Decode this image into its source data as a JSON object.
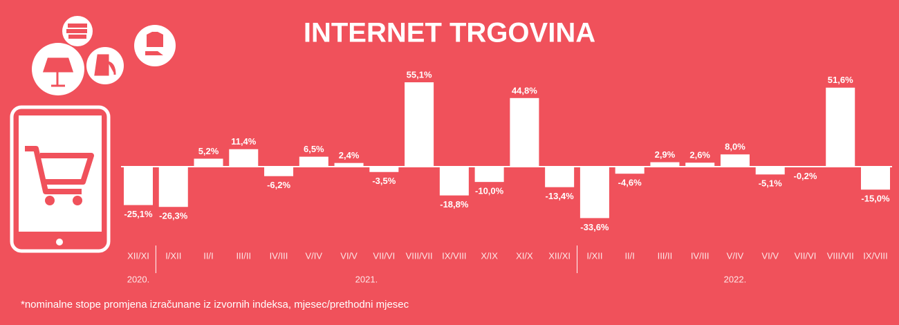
{
  "chart_data": {
    "type": "bar",
    "title": "INTERNET TRGOVINA",
    "categories": [
      "XII/XI",
      "I/XII",
      "II/I",
      "III/II",
      "IV/III",
      "V/IV",
      "VI/V",
      "VII/VI",
      "VIII/VII",
      "IX/VIII",
      "X/IX",
      "XI/X",
      "XII/XI",
      "I/XII",
      "II/I",
      "III/II",
      "IV/III",
      "V/IV",
      "VI/V",
      "VII/VI",
      "VIII/VII",
      "IX/VIII"
    ],
    "values": [
      -25.1,
      -26.3,
      5.2,
      11.4,
      -6.2,
      6.5,
      2.4,
      -3.5,
      55.1,
      -18.8,
      -10.0,
      44.8,
      -13.4,
      -33.6,
      -4.6,
      2.9,
      2.6,
      8.0,
      -5.1,
      -0.2,
      51.6,
      -15.0
    ],
    "value_labels": [
      "-25,1%",
      "-26,3%",
      "5,2%",
      "11,4%",
      "-6,2%",
      "6,5%",
      "2,4%",
      "-3,5%",
      "55,1%",
      "-18,8%",
      "-10,0%",
      "44,8%",
      "-13,4%",
      "-33,6%",
      "-4,6%",
      "2,9%",
      "2,6%",
      "8,0%",
      "-5,1%",
      "-0,2%",
      "51,6%",
      "-15,0%"
    ],
    "years": [
      "2020.",
      "2021.",
      "2022."
    ],
    "color": "#ffffff",
    "footnote": "*nominalne stope promjena izračunane iz izvornih indeksa, mjesec/prethodni mjesec"
  }
}
